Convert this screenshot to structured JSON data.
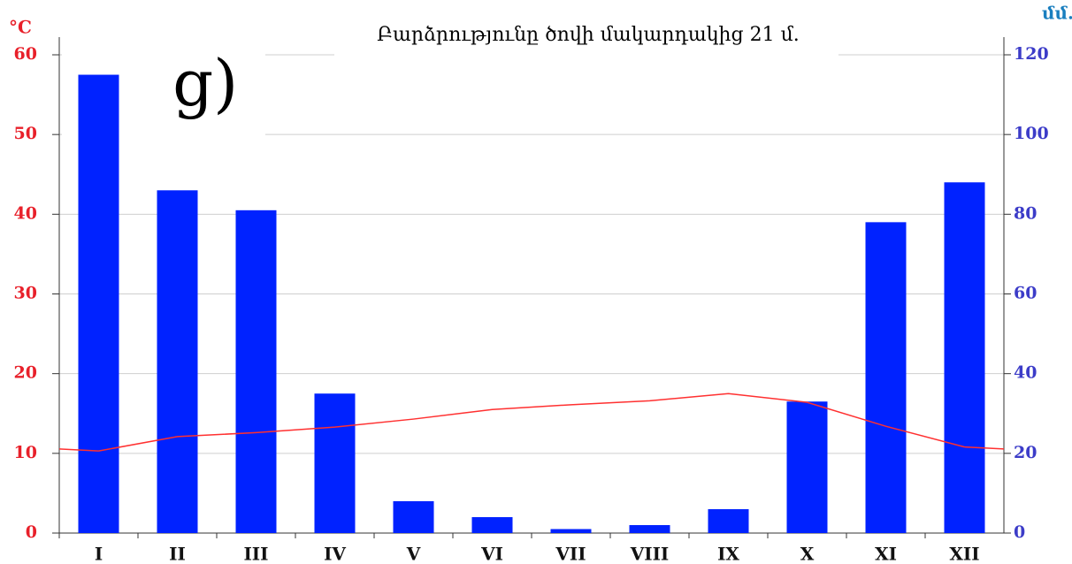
{
  "chart_data": {
    "type": "bar",
    "title": "Բարձրությունը ծովի մակարդակից 21 մ.",
    "label": "ց)",
    "y_unit": "°C",
    "y2_unit": "մմ.",
    "categories": [
      "I",
      "II",
      "III",
      "IV",
      "V",
      "VI",
      "VII",
      "VIII",
      "IX",
      "X",
      "XI",
      "XII"
    ],
    "series": [
      {
        "type": "bar",
        "axis": "y2",
        "color": "#0022ff",
        "values": [
          115,
          86,
          81,
          35,
          8,
          4,
          1,
          2,
          6,
          33,
          78,
          88
        ]
      },
      {
        "type": "line",
        "axis": "y",
        "color": "#ff3030",
        "values": [
          10.3,
          12.1,
          12.6,
          13.3,
          14.3,
          15.5,
          16.1,
          16.6,
          17.5,
          16.4,
          13.4,
          10.8
        ]
      }
    ],
    "ylim": [
      0,
      60
    ],
    "yticks": [
      0,
      10,
      20,
      30,
      40,
      50,
      60
    ],
    "y2lim": [
      0,
      120
    ],
    "y2ticks": [
      0,
      20,
      40,
      60,
      80,
      100,
      120
    ],
    "grid": true
  }
}
